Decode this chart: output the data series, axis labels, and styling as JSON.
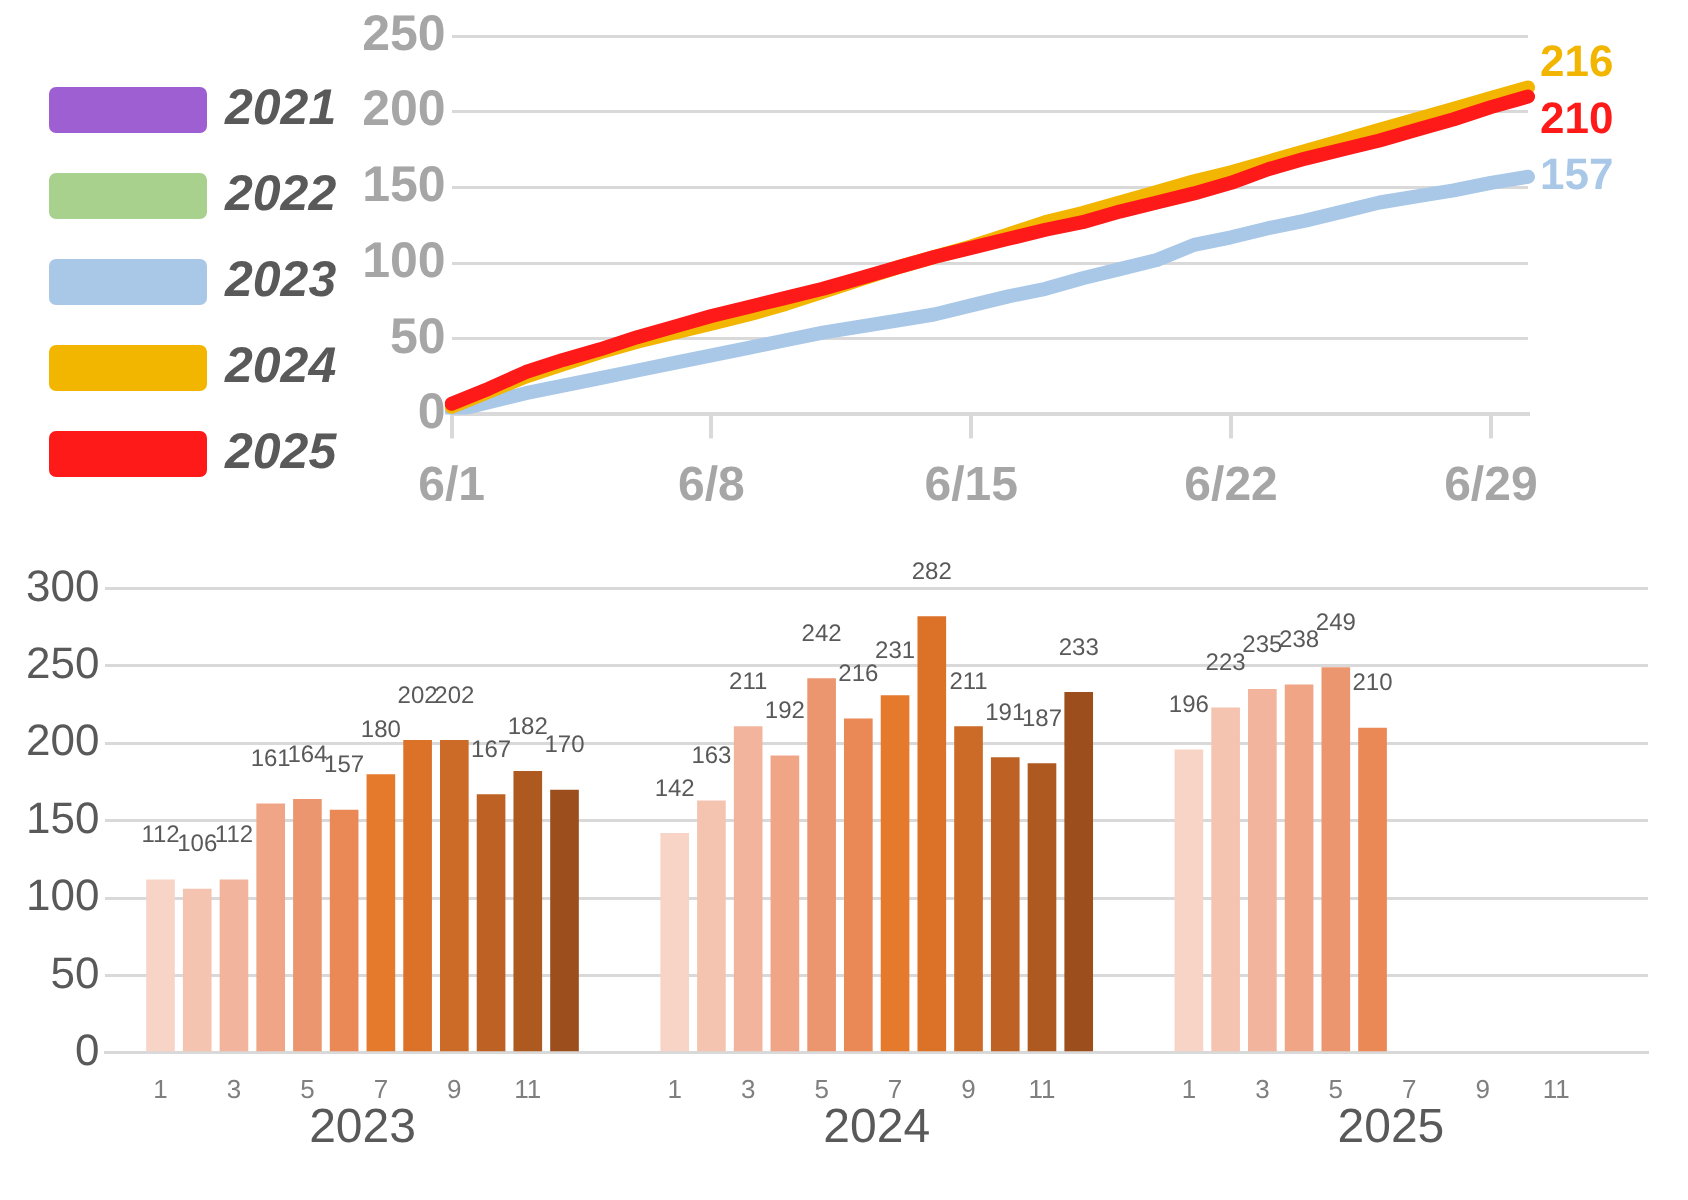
{
  "chart_data": [
    {
      "type": "line",
      "categories": [
        "6/1",
        null,
        null,
        null,
        null,
        null,
        null,
        "6/8",
        null,
        null,
        null,
        null,
        null,
        null,
        "6/15",
        null,
        null,
        null,
        null,
        null,
        null,
        "6/22",
        null,
        null,
        null,
        null,
        null,
        null,
        "6/29",
        null
      ],
      "ylim": [
        0,
        250
      ],
      "yticks": [
        0,
        50,
        100,
        150,
        200,
        250
      ],
      "grid": "y",
      "legend": "left",
      "marker": "none",
      "series": [
        {
          "name": "2021",
          "color": "#9e5fd3",
          "values": [
            null,
            null,
            null,
            null,
            null,
            null,
            null,
            null,
            null,
            null,
            null,
            null,
            null,
            null,
            null,
            null,
            null,
            null,
            null,
            null,
            null,
            null,
            null,
            null,
            null,
            null,
            null,
            null,
            null,
            null
          ]
        },
        {
          "name": "2022",
          "color": "#a9d18e",
          "values": [
            null,
            null,
            null,
            null,
            null,
            null,
            null,
            null,
            null,
            null,
            null,
            null,
            null,
            null,
            null,
            null,
            null,
            null,
            null,
            null,
            null,
            null,
            null,
            null,
            null,
            null,
            null,
            null,
            null,
            null
          ]
        },
        {
          "name": "2023",
          "color": "#a9c8e8",
          "values": [
            2,
            8,
            14,
            19,
            24,
            29,
            34,
            39,
            44,
            49,
            54,
            58,
            62,
            66,
            72,
            78,
            83,
            90,
            96,
            102,
            112,
            117,
            123,
            128,
            134,
            140,
            144,
            148,
            153,
            157
          ],
          "value_labels": [
            null,
            null,
            null,
            null,
            null,
            null,
            null,
            null,
            null,
            null,
            null,
            null,
            null,
            null,
            null,
            null,
            null,
            null,
            null,
            null,
            null,
            null,
            null,
            null,
            null,
            null,
            null,
            null,
            null,
            "157"
          ]
        },
        {
          "name": "2024",
          "color": "#f2b600",
          "values": [
            5,
            15,
            25,
            33,
            41,
            48,
            54,
            60,
            66,
            73,
            81,
            89,
            97,
            104,
            111,
            119,
            127,
            133,
            140,
            147,
            154,
            160,
            167,
            174,
            181,
            188,
            195,
            202,
            209,
            216
          ],
          "value_labels": [
            null,
            null,
            null,
            null,
            null,
            null,
            null,
            null,
            null,
            null,
            null,
            null,
            null,
            null,
            null,
            null,
            null,
            null,
            null,
            null,
            null,
            null,
            null,
            null,
            null,
            null,
            null,
            null,
            null,
            "216"
          ]
        },
        {
          "name": "2025",
          "color": "#ff1a1a",
          "values": [
            7,
            17,
            28,
            36,
            43,
            51,
            58,
            65,
            71,
            77,
            83,
            90,
            97,
            104,
            110,
            116,
            122,
            127,
            134,
            140,
            146,
            153,
            162,
            169,
            175,
            181,
            188,
            195,
            203,
            210
          ],
          "value_labels": [
            null,
            null,
            null,
            null,
            null,
            null,
            null,
            null,
            null,
            null,
            null,
            null,
            null,
            null,
            null,
            null,
            null,
            null,
            null,
            null,
            null,
            null,
            null,
            null,
            null,
            null,
            null,
            null,
            null,
            "210"
          ]
        }
      ]
    },
    {
      "type": "bar",
      "categories": [
        null,
        "1",
        null,
        "3",
        null,
        "5",
        null,
        "7",
        null,
        "9",
        null,
        "11",
        null,
        null,
        null,
        "1",
        null,
        "3",
        null,
        "5",
        null,
        "7",
        null,
        "9",
        null,
        "11",
        null,
        null,
        null,
        "1",
        null,
        "3",
        null,
        "5",
        null,
        "7",
        null,
        "9",
        null,
        "11",
        null,
        null
      ],
      "values": [
        null,
        112,
        106,
        112,
        161,
        164,
        157,
        180,
        202,
        202,
        167,
        182,
        170,
        null,
        null,
        142,
        163,
        211,
        192,
        242,
        216,
        231,
        282,
        211,
        191,
        187,
        233,
        null,
        null,
        196,
        223,
        235,
        238,
        249,
        210,
        null,
        null,
        null,
        null,
        null,
        null,
        null
      ],
      "colors": [
        null,
        "#f8d4c6",
        "#f5c4b1",
        "#f2b49c",
        "#efa586",
        "#ec9670",
        "#ea8856",
        "#e57a2c",
        "#dc7128",
        "#cc6a27",
        "#bd6224",
        "#ae5920",
        "#9c4f1c",
        null,
        null,
        "#f8d4c6",
        "#f5c4b1",
        "#f2b49c",
        "#efa586",
        "#ec9670",
        "#ea8856",
        "#e57a2c",
        "#dc7128",
        "#cc6a27",
        "#bd6224",
        "#ae5920",
        "#9c4f1c",
        null,
        null,
        "#f8d4c6",
        "#f5c4b1",
        "#f2b49c",
        "#efa586",
        "#ec9670",
        "#ea8856",
        "#e57a2c",
        "#dc7128",
        "#cc6a27",
        "#bd6224",
        "#ae5920",
        "#9c4f1c",
        null
      ],
      "ylim": [
        0,
        300
      ],
      "yticks": [
        0,
        50,
        100,
        150,
        200,
        250,
        300
      ],
      "grid": "y",
      "data_labels": true,
      "annotations": [
        "2023",
        "2024",
        "2025"
      ]
    }
  ]
}
